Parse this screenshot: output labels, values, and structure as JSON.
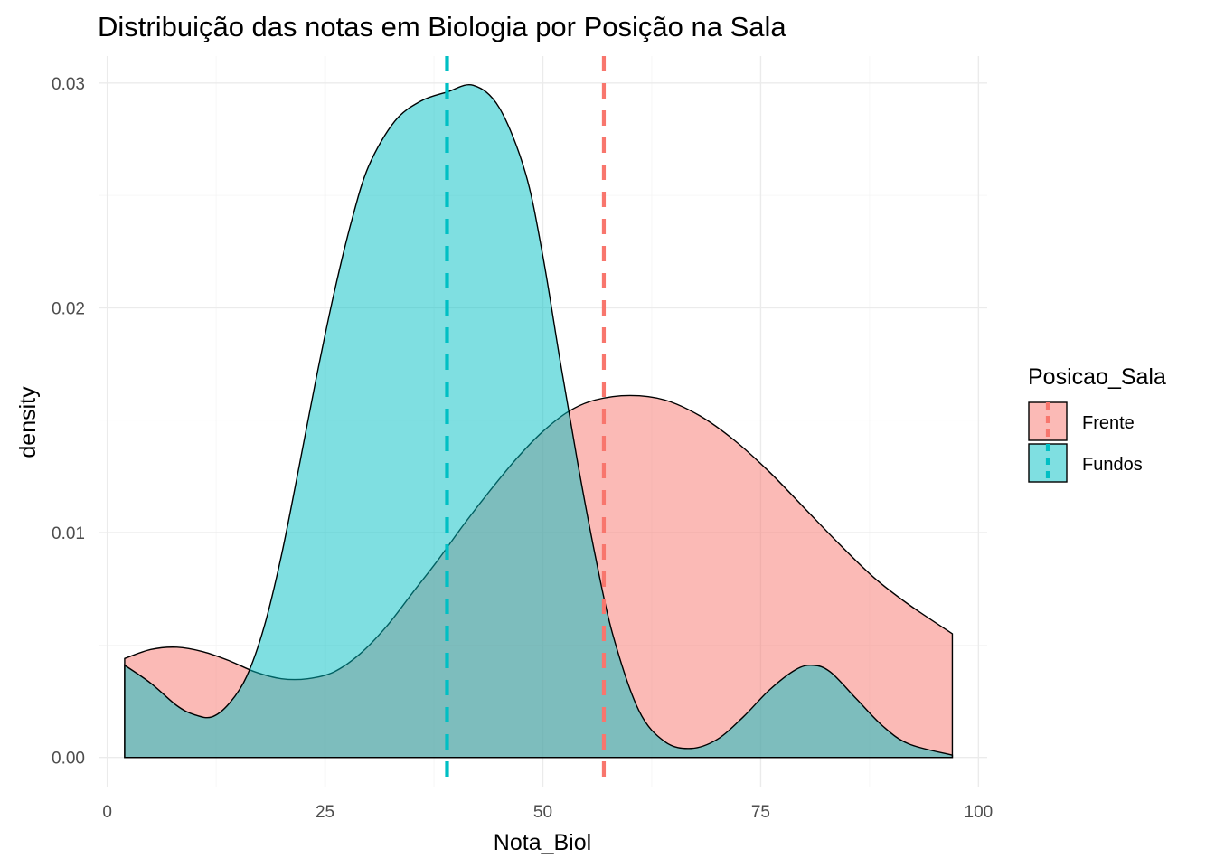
{
  "chart_data": {
    "type": "area",
    "title": "Distribuição das notas em Biologia por Posição na Sala",
    "xlabel": "Nota_Biol",
    "ylabel": "density",
    "xlim": [
      -1,
      101
    ],
    "ylim": [
      -0.0013,
      0.0312
    ],
    "x_ticks": [
      0,
      25,
      50,
      75,
      100
    ],
    "x_tick_labels": [
      "0",
      "25",
      "50",
      "75",
      "100"
    ],
    "y_ticks": [
      0.0,
      0.01,
      0.02,
      0.03
    ],
    "y_tick_labels": [
      "0.00",
      "0.01",
      "0.02",
      "0.03"
    ],
    "grid": true,
    "legend": {
      "title": "Posicao_Sala",
      "position": "right"
    },
    "series": [
      {
        "name": "Frente",
        "color": "#F8766D",
        "mean": 57,
        "x": [
          2,
          5,
          8,
          11,
          14,
          17,
          20,
          23,
          26,
          29,
          32,
          35,
          38,
          41,
          44,
          47,
          50,
          53,
          56,
          60,
          64,
          68,
          72,
          76,
          80,
          84,
          88,
          92,
          97
        ],
        "y": [
          0.0044,
          0.0048,
          0.0049,
          0.0047,
          0.0043,
          0.0038,
          0.0035,
          0.0035,
          0.0038,
          0.0046,
          0.0058,
          0.0073,
          0.0088,
          0.0104,
          0.0119,
          0.0133,
          0.0145,
          0.0154,
          0.0159,
          0.0161,
          0.0159,
          0.0152,
          0.0141,
          0.0127,
          0.0111,
          0.0095,
          0.008,
          0.0068,
          0.0055
        ]
      },
      {
        "name": "Fundos",
        "color": "#00BFC4",
        "mean": 39,
        "x": [
          2,
          5,
          8,
          10,
          12,
          14,
          16,
          18,
          20,
          22,
          24,
          26,
          28,
          30,
          33,
          36,
          39,
          42,
          45,
          48,
          50,
          52,
          54,
          56,
          58,
          61,
          64,
          67,
          70,
          73,
          76,
          79,
          81,
          83,
          86,
          89,
          92,
          97
        ],
        "y": [
          0.0041,
          0.0033,
          0.0023,
          0.0019,
          0.0018,
          0.0024,
          0.0036,
          0.0058,
          0.009,
          0.0129,
          0.0169,
          0.0206,
          0.0238,
          0.0263,
          0.0283,
          0.0292,
          0.0296,
          0.0299,
          0.0289,
          0.026,
          0.0223,
          0.0176,
          0.0131,
          0.009,
          0.0055,
          0.0021,
          0.0007,
          0.0004,
          0.0008,
          0.0018,
          0.003,
          0.0039,
          0.0041,
          0.0038,
          0.0026,
          0.0014,
          0.0006,
          0.0001
        ]
      }
    ]
  }
}
